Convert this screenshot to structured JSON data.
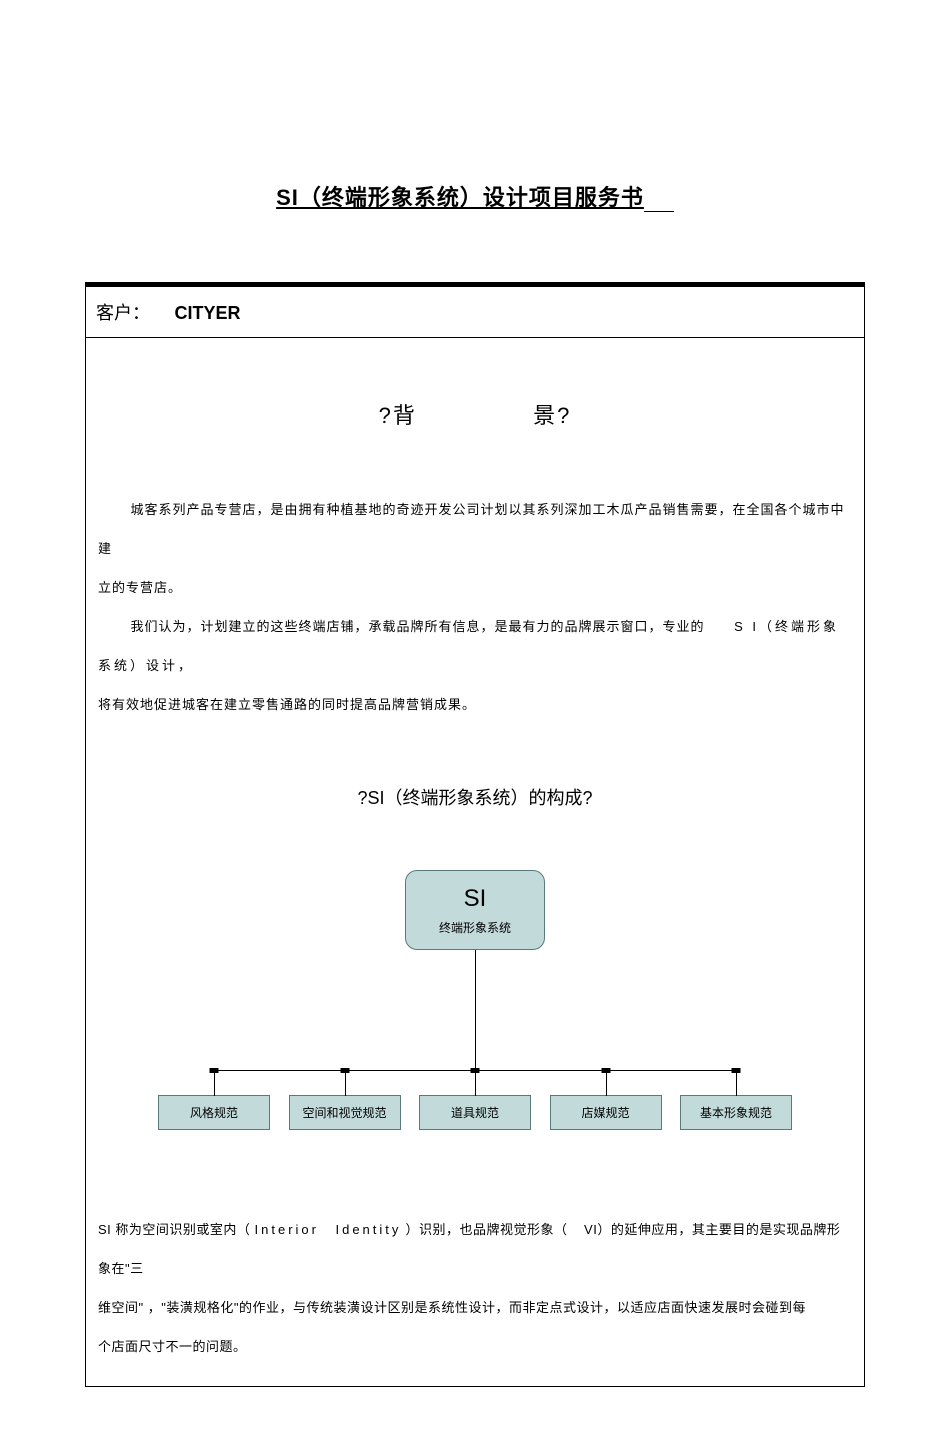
{
  "doc": {
    "title": "SI（终端形象系统）设计项目服务书"
  },
  "client": {
    "label": "客户：",
    "value": "CITYER"
  },
  "section1": {
    "heading_left": "?背",
    "heading_right": "景?",
    "para1": "城客系列产品专营店，是由拥有种植基地的奇迹开发公司计划以其系列深加工木瓜产品销售需要，在全国各个城市中建",
    "para1b": "立的专营店。",
    "para2a": "我们认为，计划建立的这些终端店铺，承载品牌所有信息，是最有力的品牌展示窗口，专业的",
    "para2_label": "S I（终端形象系统）设计，",
    "para2c": "将有效地促进城客在建立零售通路的同时提高品牌营销成果。"
  },
  "section2": {
    "heading": "?SI（终端形象系统）的构成?"
  },
  "diagram": {
    "type": "tree",
    "root": {
      "title": "SI",
      "subtitle": "终端形象系统"
    },
    "node_fill": "#c2dada",
    "node_border": "#5a7a7a",
    "connector_color": "#000000",
    "children": [
      {
        "label": "风格规范"
      },
      {
        "label": "空间和视觉规范"
      },
      {
        "label": "道具规范"
      },
      {
        "label": "店媒规范"
      },
      {
        "label": "基本形象规范"
      }
    ]
  },
  "footer": {
    "line1a": "SI 称为空间识别或室内（",
    "line1b": "Interior",
    "line1c": "Identity",
    "line1d": "）识别，也品牌视觉形象（",
    "line1e": "VI）的延伸应用，其主要目的是实现品牌形象在\"三",
    "line2": "维空间\" ，\"装潢规格化\"的作业，与传统装潢设计区别是系统性设计，而非定点式设计，以适应店面快速发展时会碰到每",
    "line3": "个店面尺寸不一的问题。"
  },
  "colors": {
    "background": "#ffffff",
    "text": "#000000",
    "border": "#000000"
  }
}
